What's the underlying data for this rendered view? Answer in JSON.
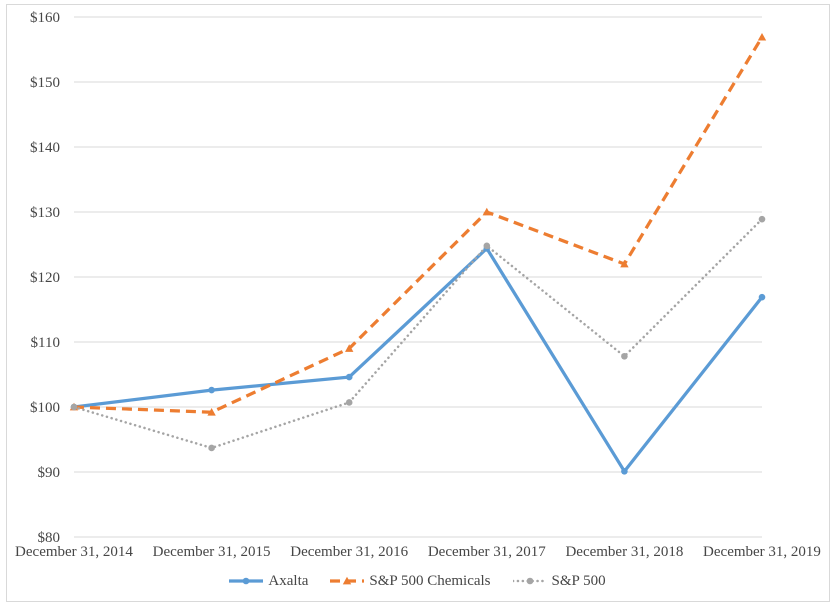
{
  "chart_data": {
    "type": "line",
    "title": "",
    "categories": [
      "December 31, 2014",
      "December 31, 2015",
      "December 31, 2016",
      "December 31, 2017",
      "December 31, 2018",
      "December 31, 2019"
    ],
    "series": [
      {
        "name": "Axalta",
        "color": "#5B9BD5",
        "line_style": "solid",
        "marker": "circle",
        "values": [
          100.0,
          102.6,
          104.6,
          124.4,
          90.1,
          116.9
        ]
      },
      {
        "name": "S&P 500 Chemicals",
        "color": "#ED7D31",
        "line_style": "dashed",
        "marker": "triangle",
        "values": [
          100.0,
          99.2,
          109.0,
          130.0,
          122.0,
          156.9
        ]
      },
      {
        "name": "S&P 500",
        "color": "#A5A5A5",
        "line_style": "dotted",
        "marker": "circle",
        "values": [
          100.0,
          93.7,
          100.7,
          124.8,
          107.8,
          128.9
        ]
      }
    ],
    "y_axis": {
      "min": 80,
      "max": 160,
      "step": 10,
      "tick_prefix": "$",
      "tick_labels": [
        "$80",
        "$90",
        "$100",
        "$110",
        "$120",
        "$130",
        "$140",
        "$150",
        "$160"
      ]
    },
    "legend_position": "bottom",
    "grid": "horizontal",
    "colors": {
      "gridline": "#D9D9D9",
      "text": "#464646",
      "border": "#D9D9D9",
      "background": "#FFFFFF"
    }
  }
}
